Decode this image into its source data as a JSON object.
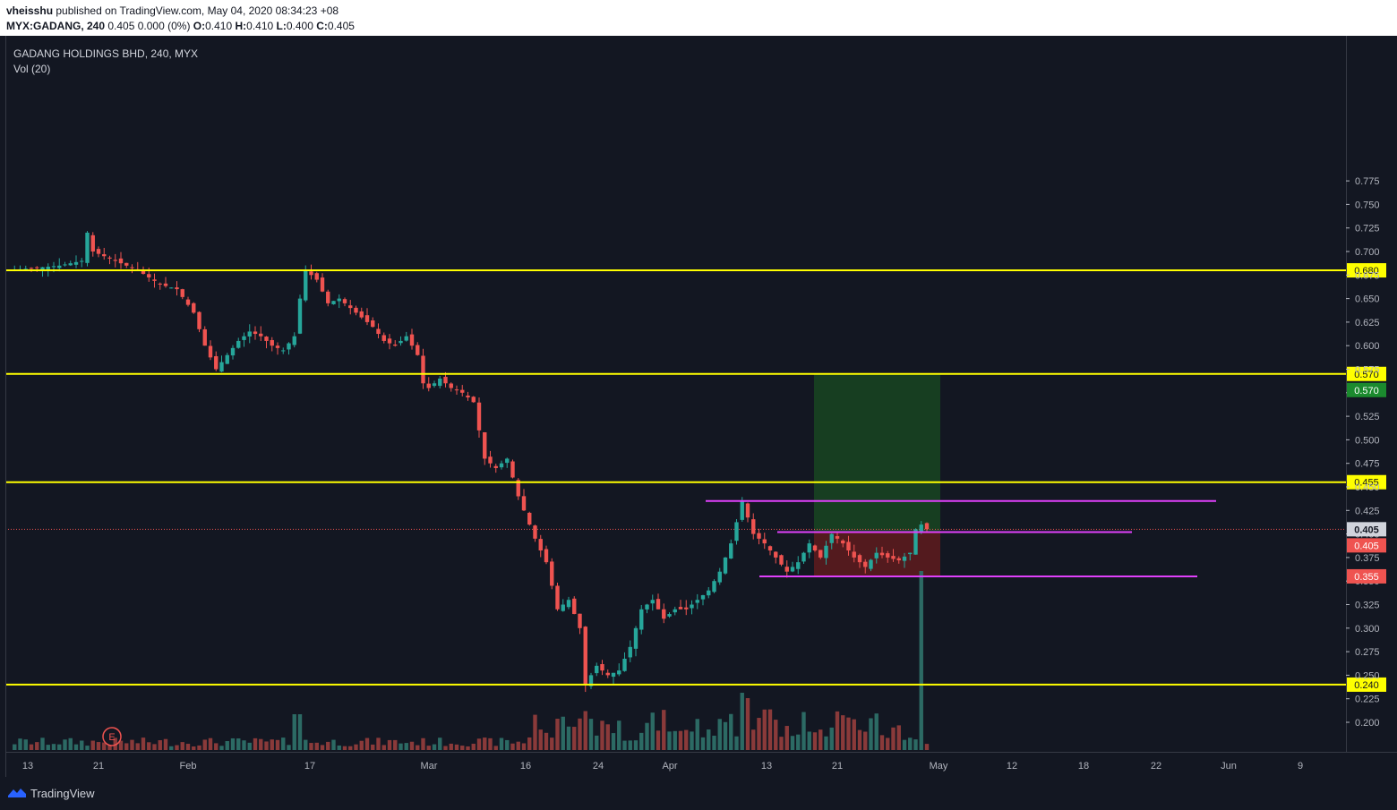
{
  "header": {
    "author": "vheisshu",
    "published": "published on TradingView.com, May 04, 2020 08:34:23 +08",
    "symbol": "MYX:GADANG, 240",
    "change": "0.405 0.000 (0%)",
    "o_label": "O:",
    "o": "0.410",
    "h_label": "H:",
    "h": "0.410",
    "l_label": "L:",
    "l": "0.400",
    "c_label": "C:",
    "c": "0.405"
  },
  "legend": {
    "title": "GADANG HOLDINGS BHD, 240, MYX",
    "indicator": "Vol (20)"
  },
  "event_marker": "E",
  "footer": {
    "brand": "TradingView"
  },
  "colors": {
    "background": "#131722",
    "up": "#26a69a",
    "down": "#ef5350",
    "horizontal_line": "#ffff00",
    "trend_line": "#e040fb",
    "target_zone": "#1b5e20",
    "stop_zone": "#7f1d1d"
  },
  "chart_data": {
    "type": "candlestick",
    "ylim": [
      0.175,
      0.775
    ],
    "y_ticks": [
      "0.775",
      "0.750",
      "0.725",
      "0.700",
      "0.675",
      "0.650",
      "0.625",
      "0.600",
      "0.575",
      "0.550",
      "0.525",
      "0.500",
      "0.475",
      "0.450",
      "0.425",
      "0.400",
      "0.375",
      "0.350",
      "0.325",
      "0.300",
      "0.275",
      "0.250",
      "0.225",
      "0.200"
    ],
    "x_ticks": [
      "13",
      "21",
      "Feb",
      "17",
      "Mar",
      "16",
      "24",
      "Apr",
      "13",
      "21",
      "May",
      "12",
      "18",
      "22",
      "Jun",
      "9"
    ],
    "horizontal_levels": [
      {
        "value": 0.68,
        "label": "0.680"
      },
      {
        "value": 0.57,
        "label": "0.570"
      },
      {
        "value": 0.455,
        "label": "0.455"
      },
      {
        "value": 0.24,
        "label": "0.240"
      }
    ],
    "price_labels": [
      {
        "value": 0.57,
        "label": "0.570",
        "color": "green"
      },
      {
        "value": 0.405,
        "label": "0.405",
        "color": "grey"
      },
      {
        "value": 0.405,
        "label": "0.405",
        "color": "red"
      },
      {
        "value": 0.355,
        "label": "0.355",
        "color": "red"
      }
    ],
    "last_price": 0.405,
    "trend_lines": [
      {
        "y": 0.435
      },
      {
        "y": 0.402
      },
      {
        "y": 0.355
      }
    ],
    "position": {
      "entry": 0.402,
      "target": 0.57,
      "stop": 0.355
    },
    "close_path": [
      [
        0,
        0.68
      ],
      [
        9,
        0.685
      ],
      [
        13,
        0.69
      ],
      [
        14,
        0.72
      ],
      [
        15,
        0.7
      ],
      [
        17,
        0.695
      ],
      [
        19,
        0.69
      ],
      [
        23,
        0.68
      ],
      [
        27,
        0.665
      ],
      [
        30,
        0.66
      ],
      [
        33,
        0.635
      ],
      [
        35,
        0.6
      ],
      [
        37,
        0.575
      ],
      [
        39,
        0.59
      ],
      [
        41,
        0.605
      ],
      [
        43,
        0.615
      ],
      [
        45,
        0.61
      ],
      [
        47,
        0.6
      ],
      [
        49,
        0.595
      ],
      [
        51,
        0.61
      ],
      [
        52,
        0.65
      ],
      [
        53,
        0.68
      ],
      [
        55,
        0.67
      ],
      [
        57,
        0.645
      ],
      [
        59,
        0.65
      ],
      [
        61,
        0.64
      ],
      [
        63,
        0.63
      ],
      [
        65,
        0.62
      ],
      [
        67,
        0.605
      ],
      [
        69,
        0.6
      ],
      [
        71,
        0.61
      ],
      [
        73,
        0.59
      ],
      [
        74,
        0.56
      ],
      [
        75,
        0.555
      ],
      [
        77,
        0.565
      ],
      [
        79,
        0.555
      ],
      [
        81,
        0.55
      ],
      [
        83,
        0.54
      ],
      [
        84,
        0.51
      ],
      [
        85,
        0.48
      ],
      [
        87,
        0.47
      ],
      [
        89,
        0.48
      ],
      [
        91,
        0.44
      ],
      [
        93,
        0.41
      ],
      [
        94,
        0.395
      ],
      [
        96,
        0.37
      ],
      [
        98,
        0.32
      ],
      [
        100,
        0.33
      ],
      [
        102,
        0.3
      ],
      [
        103,
        0.24
      ],
      [
        105,
        0.26
      ],
      [
        107,
        0.25
      ],
      [
        109,
        0.255
      ],
      [
        111,
        0.28
      ],
      [
        113,
        0.32
      ],
      [
        115,
        0.33
      ],
      [
        117,
        0.31
      ],
      [
        119,
        0.32
      ],
      [
        121,
        0.32
      ],
      [
        123,
        0.33
      ],
      [
        125,
        0.34
      ],
      [
        127,
        0.36
      ],
      [
        129,
        0.39
      ],
      [
        131,
        0.435
      ],
      [
        133,
        0.4
      ],
      [
        135,
        0.39
      ],
      [
        137,
        0.375
      ],
      [
        139,
        0.36
      ],
      [
        141,
        0.37
      ],
      [
        143,
        0.39
      ],
      [
        145,
        0.375
      ],
      [
        147,
        0.4
      ],
      [
        149,
        0.39
      ],
      [
        151,
        0.375
      ],
      [
        153,
        0.365
      ],
      [
        155,
        0.38
      ],
      [
        157,
        0.375
      ],
      [
        159,
        0.372
      ],
      [
        161,
        0.38
      ],
      [
        162,
        0.405
      ],
      [
        163,
        0.41
      ],
      [
        164,
        0.405
      ]
    ],
    "volume_spikes": [
      {
        "x": 131,
        "v": 0.32
      },
      {
        "x": 132,
        "v": 0.29
      },
      {
        "x": 163,
        "v": 1.0
      },
      {
        "x": 165,
        "v": 0.22
      }
    ]
  }
}
